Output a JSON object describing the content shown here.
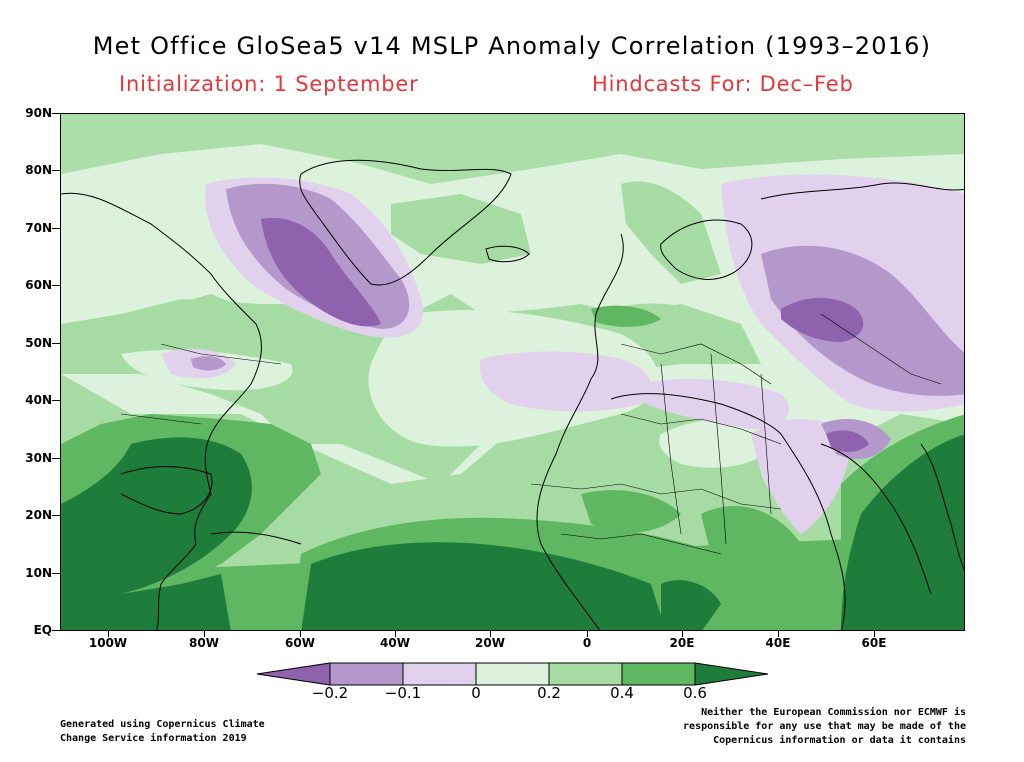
{
  "header": {
    "title": "Met Office GloSea5 v14 MSLP Anomaly Correlation (1993–2016)",
    "initialization": "Initialization: 1 September",
    "hindcasts": "Hindcasts For: Dec–Feb"
  },
  "map": {
    "lat_labels": [
      "90N",
      "80N",
      "70N",
      "60N",
      "50N",
      "40N",
      "30N",
      "20N",
      "10N",
      "EQ"
    ],
    "lon_labels": [
      "100W",
      "80W",
      "60W",
      "40W",
      "20W",
      "0",
      "20E",
      "40E",
      "60E"
    ],
    "region": {
      "lon_min": -110,
      "lon_max": 78,
      "lat_min": 0,
      "lat_max": 90
    },
    "field": "MSLP anomaly correlation"
  },
  "colorbar": {
    "labels": [
      "−0.2",
      "−0.1",
      "0",
      "0.2",
      "0.4",
      "0.6"
    ],
    "levels": [
      -0.2,
      -0.1,
      0,
      0.2,
      0.4,
      0.6
    ],
    "colors": {
      "below_-0.2": "#8e62ad",
      "-0.2_to_-0.1": "#b497cb",
      "-0.1_to_0": "#e2d1ec",
      "0_to_0.2": "#dcf2dc",
      "0.2_to_0.4": "#a6dca3",
      "0.4_to_0.6": "#5fb761",
      "above_0.6": "#1e7d3a"
    }
  },
  "footer": {
    "left": [
      "Generated using Copernicus Climate",
      "Change Service information 2019"
    ],
    "right": [
      "Neither the European Commission nor ECMWF is",
      "responsible for any use that may be made of the",
      "Copernicus information or data it contains"
    ]
  }
}
